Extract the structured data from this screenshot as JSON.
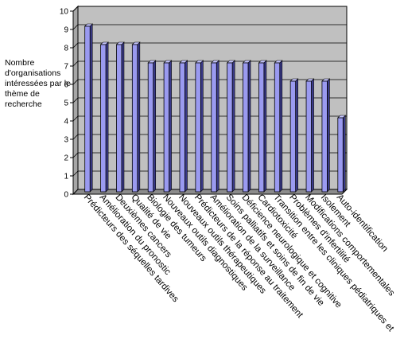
{
  "chart_data": {
    "type": "bar",
    "title": "",
    "xlabel": "",
    "ylabel": "Nombre d'organisations intéressées par le thème de recherche",
    "ylim": [
      0,
      10
    ],
    "yticks": [
      0,
      1,
      2,
      3,
      4,
      5,
      6,
      7,
      8,
      9,
      10
    ],
    "grid": true,
    "legend": "none",
    "bar_color": "#9a9af0",
    "plot_bg": "#c0c0c0",
    "categories": [
      "Prédicteurs des séquelles tardives",
      "Amélioration du pronostic",
      "Deuxièmes cancers",
      "Qualité de vie",
      "Biologie des tumeurs",
      "Nouveaux outils diagnostiques",
      "Nouveaux outils thérapeutiques",
      "Prédicteurs de la réponse au traitement",
      "Amélioration de la surveillance",
      "Soins palliatifs et soins de fin de vie",
      "Déficience neurologique et cognitive",
      "Cardiotoxicité",
      "Transition entre les cliniques pédiatriques et",
      "Problèmes d'infertilité",
      "Modifications comportementales",
      "Isolement",
      "Auto-identification"
    ],
    "values": [
      9,
      8,
      8,
      8,
      7,
      7,
      7,
      7,
      7,
      7,
      7,
      7,
      7,
      6,
      6,
      6,
      4
    ]
  }
}
